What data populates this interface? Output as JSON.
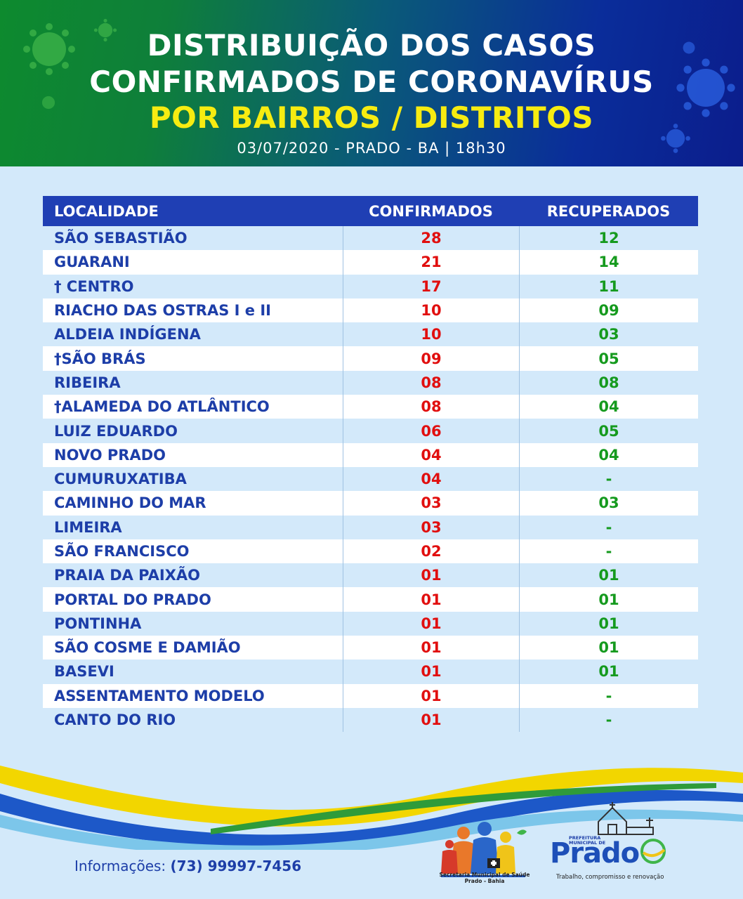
{
  "header": {
    "line1": "DISTRIBUIÇÃO DOS CASOS",
    "line2": "CONFIRMADOS DE CORONAVÍRUS",
    "line3": "POR BAIRROS / DISTRITOS",
    "subtitle": "03/07/2020 - PRADO - BA | 18h30"
  },
  "table": {
    "headers": [
      "LOCALIDADE",
      "CONFIRMADOS",
      "RECUPERADOS"
    ],
    "rows": [
      {
        "local": "SÃO SEBASTIÃO",
        "confirmados": "28",
        "recuperados": "12"
      },
      {
        "local": "GUARANI",
        "confirmados": "21",
        "recuperados": "14"
      },
      {
        "local": "† CENTRO",
        "confirmados": "17",
        "recuperados": "11"
      },
      {
        "local": "RIACHO DAS OSTRAS I e II",
        "confirmados": "10",
        "recuperados": "09"
      },
      {
        "local": "ALDEIA INDÍGENA",
        "confirmados": "10",
        "recuperados": "03"
      },
      {
        "local": "†SÃO BRÁS",
        "confirmados": "09",
        "recuperados": "05"
      },
      {
        "local": "RIBEIRA",
        "confirmados": "08",
        "recuperados": "08"
      },
      {
        "local": "†ALAMEDA DO ATLÂNTICO",
        "confirmados": "08",
        "recuperados": "04"
      },
      {
        "local": "LUIZ EDUARDO",
        "confirmados": "06",
        "recuperados": "05"
      },
      {
        "local": "NOVO PRADO",
        "confirmados": "04",
        "recuperados": "04"
      },
      {
        "local": "CUMURUXATIBA",
        "confirmados": "04",
        "recuperados": "-"
      },
      {
        "local": "CAMINHO DO MAR",
        "confirmados": "03",
        "recuperados": "03"
      },
      {
        "local": "LIMEIRA",
        "confirmados": "03",
        "recuperados": "-"
      },
      {
        "local": "SÃO FRANCISCO",
        "confirmados": "02",
        "recuperados": "-"
      },
      {
        "local": "PRAIA DA PAIXÃO",
        "confirmados": "01",
        "recuperados": "01"
      },
      {
        "local": "PORTAL DO PRADO",
        "confirmados": "01",
        "recuperados": "01"
      },
      {
        "local": "PONTINHA",
        "confirmados": "01",
        "recuperados": "01"
      },
      {
        "local": "SÃO COSME E DAMIÃO",
        "confirmados": "01",
        "recuperados": "01"
      },
      {
        "local": "BASEVI",
        "confirmados": "01",
        "recuperados": "01"
      },
      {
        "local": "ASSENTAMENTO MODELO",
        "confirmados": "01",
        "recuperados": "-"
      },
      {
        "local": "CANTO DO RIO",
        "confirmados": "01",
        "recuperados": "-"
      }
    ]
  },
  "footer": {
    "info_label": "Informações:",
    "phone": "(73) 99997-7456",
    "saude_caption_1": "Secretaria Municipal de Saúde",
    "saude_caption_2": "Prado - Bahia",
    "prado_pref_1": "PREFEITURA",
    "prado_pref_2": "MUNICIPAL DE",
    "prado_name": "Prado",
    "prado_slogan": "Trabalho, compromisso e renovação"
  },
  "colors": {
    "header_blue": "#1f3fb4",
    "text_blue": "#1d3ea8",
    "confirmed_red": "#e10f0f",
    "recovered_green": "#159a1e",
    "title_yellow": "#f7ec11"
  }
}
